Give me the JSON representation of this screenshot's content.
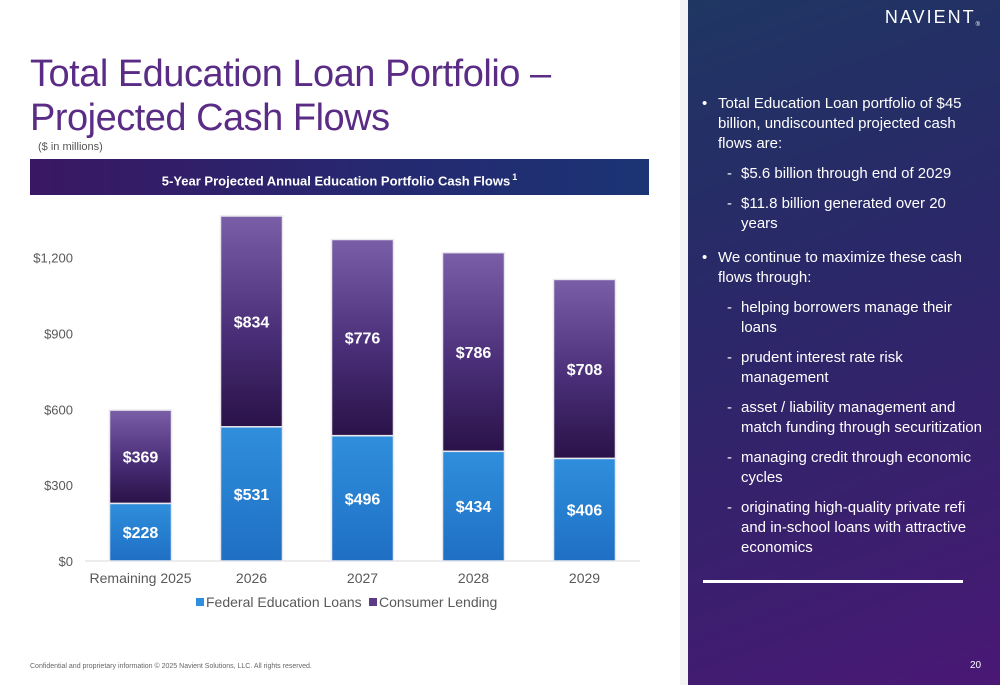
{
  "slide": {
    "title": "Total Education Loan Portfolio – Projected Cash Flows",
    "units_note": "($ in millions)",
    "chart_banner": "5-Year Projected Annual Education Portfolio Cash Flows",
    "chart_banner_footnote": "1",
    "footer": "Confidential and proprietary information © 2025 Navient Solutions, LLC. All rights reserved.",
    "page_number": "20"
  },
  "brand": {
    "logo_text": "NAVIENT",
    "logo_mark": "®"
  },
  "panel": {
    "bullets": [
      {
        "text": "Total Education Loan portfolio of $45 billion, undiscounted projected cash flows are:",
        "subs": [
          "$5.6 billion through end of 2029",
          "$11.8 billion generated over 20 years"
        ]
      },
      {
        "text": "We continue to maximize these cash flows through:",
        "subs": [
          "helping borrowers manage their loans",
          "prudent interest rate risk management",
          "asset / liability management and match funding through securitization",
          "managing credit through economic cycles",
          "originating high-quality private refi and in-school loans with attractive economics"
        ]
      }
    ]
  },
  "colors": {
    "title": "#5b2c86",
    "federal": "#2f8fdc",
    "consumer": "#5b3a86"
  },
  "chart_data": {
    "type": "bar",
    "stacked": true,
    "categories": [
      "Remaining 2025",
      "2026",
      "2027",
      "2028",
      "2029"
    ],
    "series": [
      {
        "name": "Federal Education Loans",
        "values": [
          228,
          531,
          496,
          434,
          406
        ],
        "labels": [
          "$228",
          "$531",
          "$496",
          "$434",
          "$406"
        ]
      },
      {
        "name": "Consumer Lending",
        "values": [
          369,
          834,
          776,
          786,
          708
        ],
        "labels": [
          "$369",
          "$834",
          "$776",
          "$786",
          "$708"
        ]
      }
    ],
    "y_ticks": [
      0,
      300,
      600,
      900,
      1200
    ],
    "y_tick_labels": [
      "$0",
      "$300",
      "$600",
      "$900",
      "$1,200"
    ],
    "ylim": [
      0,
      1365
    ],
    "grid": false,
    "legend_position": "bottom"
  }
}
